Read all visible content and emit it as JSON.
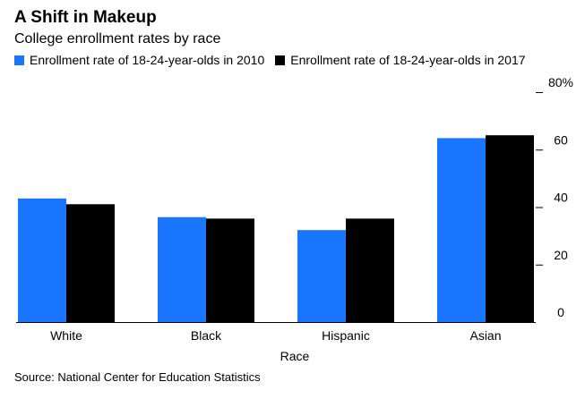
{
  "header": {
    "title": "A Shift in Makeup",
    "subtitle": "College enrollment rates by race"
  },
  "footer": {
    "source": "Source: National Center for Education Statistics"
  },
  "colors": {
    "series_2010": "#1a75ff",
    "series_2017": "#000000",
    "axis": "#000000"
  },
  "chart_data": {
    "type": "bar",
    "title": "A Shift in Makeup",
    "subtitle": "College enrollment rates by race",
    "xlabel": "Race",
    "ylabel": "",
    "categories": [
      "White",
      "Black",
      "Hispanic",
      "Asian"
    ],
    "series": [
      {
        "name": "Enrollment rate of 18-24-year-olds in 2010",
        "values": [
          43,
          36.5,
          32,
          64
        ]
      },
      {
        "name": "Enrollment rate of 18-24-year-olds in 2017",
        "values": [
          41,
          36,
          36,
          65
        ]
      }
    ],
    "ylim": [
      0,
      80
    ],
    "yticks": [
      0,
      20,
      40,
      60,
      80
    ],
    "ytick_labels": [
      "0",
      "20",
      "40",
      "60",
      "80%"
    ],
    "y_axis_side": "right",
    "grid": false,
    "legend": "top-left"
  }
}
